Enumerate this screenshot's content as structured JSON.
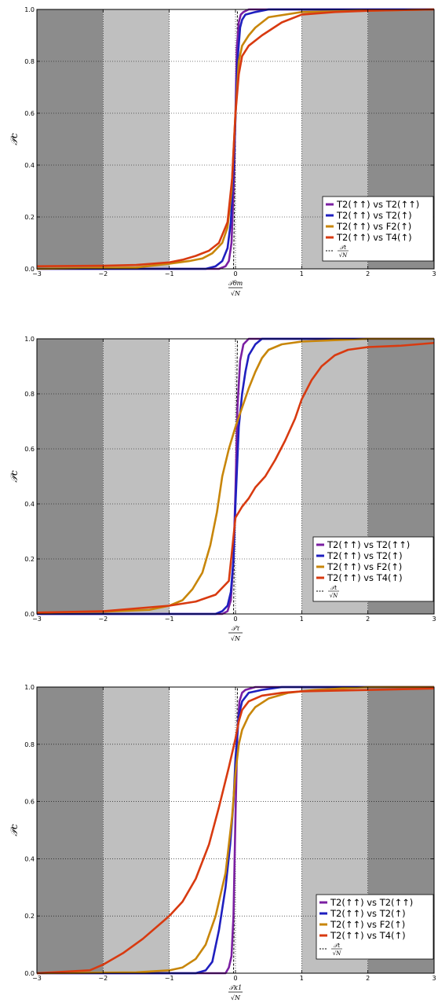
{
  "chart_data": [
    {
      "type": "line",
      "ylabel": "𝒫c",
      "xlabel_num": "𝒯θm",
      "xlabel_den": "√N",
      "xlim": [
        -3,
        3
      ],
      "ylim": [
        0,
        1
      ],
      "xticks": [
        "−3",
        "−2",
        "−1",
        "0",
        "1",
        "2",
        "3"
      ],
      "yticks": [
        "0.0",
        "0.2",
        "0.4",
        "0.6",
        "0.8",
        "1.0"
      ],
      "shaded_bands": [
        {
          "x0": -3,
          "x1": -2,
          "color": "#8c8c8c"
        },
        {
          "x0": -2,
          "x1": -1,
          "color": "#bfbfbf"
        },
        {
          "x0": 1,
          "x1": 2,
          "color": "#bfbfbf"
        },
        {
          "x0": 2,
          "x1": 3,
          "color": "#8c8c8c"
        }
      ],
      "grid": true,
      "legend_position": "bottom-right",
      "series": [
        {
          "name": "T2(↑↑) vs T2(↑↑)",
          "color": "#7b1fa2",
          "x": [
            -3,
            -0.25,
            -0.15,
            -0.1,
            -0.06,
            -0.03,
            0,
            0.02,
            0.05,
            0.08,
            0.12,
            0.2,
            0.4,
            3
          ],
          "y": [
            0.0,
            0.0,
            0.01,
            0.03,
            0.1,
            0.3,
            0.6,
            0.85,
            0.95,
            0.98,
            0.99,
            1.0,
            1.0,
            1.0
          ]
        },
        {
          "name": "T2(↑↑) vs T2(↑)",
          "color": "#1f1fbf",
          "x": [
            -3,
            -0.45,
            -0.3,
            -0.2,
            -0.12,
            -0.07,
            -0.03,
            0,
            0.03,
            0.07,
            0.1,
            0.15,
            0.3,
            0.5,
            3
          ],
          "y": [
            0.0,
            0.0,
            0.01,
            0.03,
            0.08,
            0.18,
            0.38,
            0.58,
            0.8,
            0.93,
            0.96,
            0.98,
            0.99,
            1.0,
            1.0
          ]
        },
        {
          "name": "T2(↑↑) vs F2(↑)",
          "color": "#c8860a",
          "x": [
            -3,
            -1.5,
            -1,
            -0.7,
            -0.5,
            -0.35,
            -0.2,
            -0.12,
            -0.06,
            0,
            0.05,
            0.1,
            0.2,
            0.3,
            0.5,
            1,
            3
          ],
          "y": [
            0.0,
            0.005,
            0.02,
            0.03,
            0.04,
            0.06,
            0.1,
            0.16,
            0.3,
            0.6,
            0.8,
            0.86,
            0.9,
            0.93,
            0.97,
            0.99,
            1.0
          ]
        },
        {
          "name": "T2(↑↑) vs T4(↑)",
          "color": "#d83a10",
          "x": [
            -3,
            -2,
            -1.5,
            -1,
            -0.8,
            -0.6,
            -0.4,
            -0.25,
            -0.12,
            -0.05,
            0,
            0.05,
            0.1,
            0.2,
            0.4,
            0.7,
            1,
            1.5,
            2,
            3
          ],
          "y": [
            0.01,
            0.012,
            0.015,
            0.025,
            0.035,
            0.05,
            0.07,
            0.1,
            0.18,
            0.35,
            0.6,
            0.75,
            0.82,
            0.86,
            0.9,
            0.95,
            0.98,
            0.99,
            0.995,
            1.0
          ]
        }
      ],
      "reference": {
        "name": "𝒯t / √N",
        "x": [
          -3,
          -0.03,
          0,
          0.03,
          3
        ],
        "y": [
          0,
          0,
          0.5,
          1,
          1
        ]
      }
    },
    {
      "type": "line",
      "ylabel": "𝒫c",
      "xlabel_num": "𝒯τ",
      "xlabel_den": "√N",
      "xlim": [
        -3,
        3
      ],
      "ylim": [
        0,
        1
      ],
      "xticks": [
        "−3",
        "−2",
        "−1",
        "0",
        "1",
        "2",
        "3"
      ],
      "yticks": [
        "0.0",
        "0.2",
        "0.4",
        "0.6",
        "0.8",
        "1.0"
      ],
      "shaded_bands": [
        {
          "x0": -3,
          "x1": -2,
          "color": "#8c8c8c"
        },
        {
          "x0": -2,
          "x1": -1,
          "color": "#bfbfbf"
        },
        {
          "x0": 1,
          "x1": 2,
          "color": "#bfbfbf"
        },
        {
          "x0": 2,
          "x1": 3,
          "color": "#8c8c8c"
        }
      ],
      "grid": true,
      "legend_position": "bottom-right",
      "series": [
        {
          "name": "T2(↑↑) vs T2(↑↑)",
          "color": "#7b1fa2",
          "x": [
            -3,
            -0.2,
            -0.12,
            -0.07,
            -0.03,
            0,
            0.03,
            0.07,
            0.12,
            0.2,
            0.35,
            3
          ],
          "y": [
            0.0,
            0.0,
            0.01,
            0.05,
            0.2,
            0.45,
            0.75,
            0.92,
            0.98,
            1.0,
            1.0,
            1.0
          ]
        },
        {
          "name": "T2(↑↑) vs T2(↑)",
          "color": "#1f1fbf",
          "x": [
            -3,
            -0.3,
            -0.2,
            -0.12,
            -0.07,
            -0.03,
            0,
            0.05,
            0.1,
            0.15,
            0.2,
            0.3,
            0.4,
            3
          ],
          "y": [
            0.0,
            0.0,
            0.01,
            0.03,
            0.08,
            0.2,
            0.4,
            0.68,
            0.8,
            0.88,
            0.94,
            0.98,
            1.0,
            1.0
          ]
        },
        {
          "name": "T2(↑↑) vs F2(↑)",
          "color": "#c8860a",
          "x": [
            -3,
            -2,
            -1.3,
            -1,
            -0.8,
            -0.65,
            -0.5,
            -0.38,
            -0.28,
            -0.2,
            -0.1,
            0,
            0.1,
            0.2,
            0.3,
            0.4,
            0.5,
            0.7,
            1,
            1.5,
            2,
            3
          ],
          "y": [
            0.005,
            0.008,
            0.015,
            0.03,
            0.05,
            0.09,
            0.15,
            0.25,
            0.37,
            0.5,
            0.6,
            0.68,
            0.75,
            0.82,
            0.88,
            0.93,
            0.96,
            0.98,
            0.99,
            0.995,
            1.0,
            1.0
          ]
        },
        {
          "name": "T2(↑↑) vs T4(↑)",
          "color": "#d83a10",
          "x": [
            -3,
            -2,
            -1.5,
            -1,
            -0.6,
            -0.3,
            -0.1,
            0,
            0.1,
            0.2,
            0.3,
            0.45,
            0.6,
            0.75,
            0.9,
            1.0,
            1.15,
            1.3,
            1.5,
            1.7,
            2,
            2.5,
            3
          ],
          "y": [
            0.005,
            0.01,
            0.02,
            0.03,
            0.045,
            0.07,
            0.12,
            0.35,
            0.39,
            0.42,
            0.46,
            0.5,
            0.56,
            0.63,
            0.71,
            0.78,
            0.85,
            0.9,
            0.94,
            0.96,
            0.97,
            0.975,
            0.985
          ]
        }
      ],
      "reference": {
        "name": "𝒯t / √N",
        "x": [
          -3,
          -0.03,
          0,
          0.03,
          3
        ],
        "y": [
          0,
          0,
          0.5,
          1,
          1
        ]
      }
    },
    {
      "type": "line",
      "ylabel": "𝒫c",
      "xlabel_num": "𝒯κ1",
      "xlabel_den": "√N",
      "xlim": [
        -3,
        3
      ],
      "ylim": [
        0,
        1
      ],
      "xticks": [
        "−3",
        "−2",
        "−1",
        "0",
        "1",
        "2",
        "3"
      ],
      "yticks": [
        "0.0",
        "0.2",
        "0.4",
        "0.6",
        "0.8",
        "1.0"
      ],
      "shaded_bands": [
        {
          "x0": -3,
          "x1": -2,
          "color": "#8c8c8c"
        },
        {
          "x0": -2,
          "x1": -1,
          "color": "#bfbfbf"
        },
        {
          "x0": 1,
          "x1": 2,
          "color": "#bfbfbf"
        },
        {
          "x0": 2,
          "x1": 3,
          "color": "#8c8c8c"
        }
      ],
      "grid": true,
      "legend_position": "bottom-right",
      "series": [
        {
          "name": "T2(↑↑) vs T2(↑↑)",
          "color": "#7b1fa2",
          "x": [
            -3,
            -0.15,
            -0.1,
            -0.06,
            -0.03,
            0,
            0.03,
            0.06,
            0.1,
            0.15,
            0.3,
            3
          ],
          "y": [
            0.0,
            0.0,
            0.02,
            0.06,
            0.2,
            0.55,
            0.85,
            0.95,
            0.98,
            0.99,
            1.0,
            1.0
          ]
        },
        {
          "name": "T2(↑↑) vs T2(↑)",
          "color": "#1f1fbf",
          "x": [
            -3,
            -0.6,
            -0.45,
            -0.35,
            -0.25,
            -0.15,
            -0.08,
            -0.03,
            0,
            0.05,
            0.1,
            0.2,
            0.4,
            0.7,
            3
          ],
          "y": [
            0.0,
            0.0,
            0.01,
            0.04,
            0.15,
            0.3,
            0.45,
            0.6,
            0.75,
            0.9,
            0.95,
            0.98,
            0.99,
            1.0,
            1.0
          ]
        },
        {
          "name": "T2(↑↑) vs F2(↑)",
          "color": "#c8860a",
          "x": [
            -3,
            -1.5,
            -1,
            -0.8,
            -0.6,
            -0.45,
            -0.3,
            -0.15,
            -0.05,
            0,
            0.05,
            0.1,
            0.2,
            0.3,
            0.5,
            0.8,
            1.2,
            2,
            3
          ],
          "y": [
            0.0,
            0.003,
            0.01,
            0.02,
            0.05,
            0.1,
            0.2,
            0.35,
            0.55,
            0.7,
            0.8,
            0.85,
            0.9,
            0.93,
            0.96,
            0.98,
            0.99,
            1.0,
            1.0
          ]
        },
        {
          "name": "T2(↑↑) vs T4(↑)",
          "color": "#d83a10",
          "x": [
            -3,
            -2.2,
            -2,
            -1.7,
            -1.4,
            -1.1,
            -1,
            -0.8,
            -0.6,
            -0.4,
            -0.25,
            -0.1,
            0,
            0.05,
            0.1,
            0.2,
            0.4,
            0.7,
            1,
            2,
            3
          ],
          "y": [
            0.0,
            0.01,
            0.03,
            0.07,
            0.12,
            0.18,
            0.2,
            0.25,
            0.33,
            0.45,
            0.58,
            0.72,
            0.82,
            0.88,
            0.92,
            0.95,
            0.97,
            0.98,
            0.985,
            0.99,
            0.995
          ]
        }
      ],
      "reference": {
        "name": "𝒯t / √N",
        "x": [
          -3,
          -0.03,
          0,
          0.03,
          3
        ],
        "y": [
          0,
          0,
          0.5,
          1,
          1
        ]
      }
    }
  ]
}
